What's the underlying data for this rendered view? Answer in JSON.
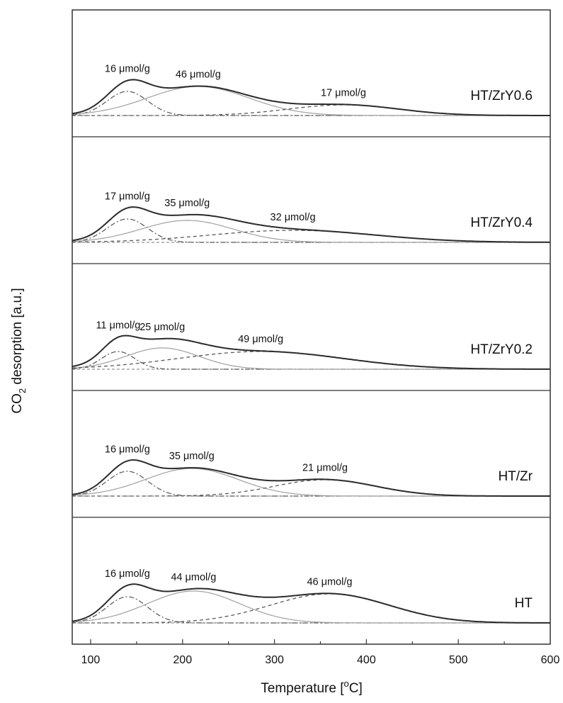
{
  "chart_data": {
    "type": "line",
    "xlabel": "Temperature [°C]",
    "ylabel": "CO2 desorption [a.u.]",
    "xlim": [
      80,
      600
    ],
    "x_ticks": [
      100,
      200,
      300,
      400,
      500,
      600
    ],
    "grid": false,
    "legend": "none",
    "colors": {
      "total": "#2b2b2b",
      "peak_low": "#555555",
      "peak_mid": "#a0a0a0",
      "peak_high": "#5a5a5a",
      "frame": "#333333"
    },
    "panels": [
      {
        "sample": "HT/ZrY0.6",
        "peaks": [
          {
            "center": 140,
            "width": 22,
            "height": 0.34,
            "label": "16 μmol/g"
          },
          {
            "center": 217,
            "width": 55,
            "height": 0.41,
            "label": "46 μmol/g"
          },
          {
            "center": 375,
            "width": 60,
            "height": 0.15,
            "label": "17 μmol/g"
          }
        ]
      },
      {
        "sample": "HT/ZrY0.4",
        "peaks": [
          {
            "center": 140,
            "width": 22,
            "height": 0.33,
            "label": "17 μmol/g"
          },
          {
            "center": 205,
            "width": 50,
            "height": 0.31,
            "label": "35 μmol/g"
          },
          {
            "center": 320,
            "width": 90,
            "height": 0.17,
            "label": "32 μmol/g"
          }
        ]
      },
      {
        "sample": "HT/ZrY0.2",
        "peaks": [
          {
            "center": 130,
            "width": 18,
            "height": 0.25,
            "label": "11 μmol/g"
          },
          {
            "center": 178,
            "width": 40,
            "height": 0.3,
            "label": "25 μmol/g"
          },
          {
            "center": 285,
            "width": 90,
            "height": 0.25,
            "label": "49 μmol/g"
          }
        ]
      },
      {
        "sample": "HT/Zr",
        "peaks": [
          {
            "center": 140,
            "width": 22,
            "height": 0.35,
            "label": "16 μmol/g"
          },
          {
            "center": 210,
            "width": 50,
            "height": 0.39,
            "label": "35 μmol/g"
          },
          {
            "center": 355,
            "width": 55,
            "height": 0.23,
            "label": "21 μmol/g"
          }
        ]
      },
      {
        "sample": "HT",
        "peaks": [
          {
            "center": 140,
            "width": 22,
            "height": 0.37,
            "label": "16 μmol/g"
          },
          {
            "center": 212,
            "width": 50,
            "height": 0.45,
            "label": "44 μmol/g"
          },
          {
            "center": 360,
            "width": 65,
            "height": 0.41,
            "label": "46 μmol/g"
          }
        ]
      }
    ]
  }
}
